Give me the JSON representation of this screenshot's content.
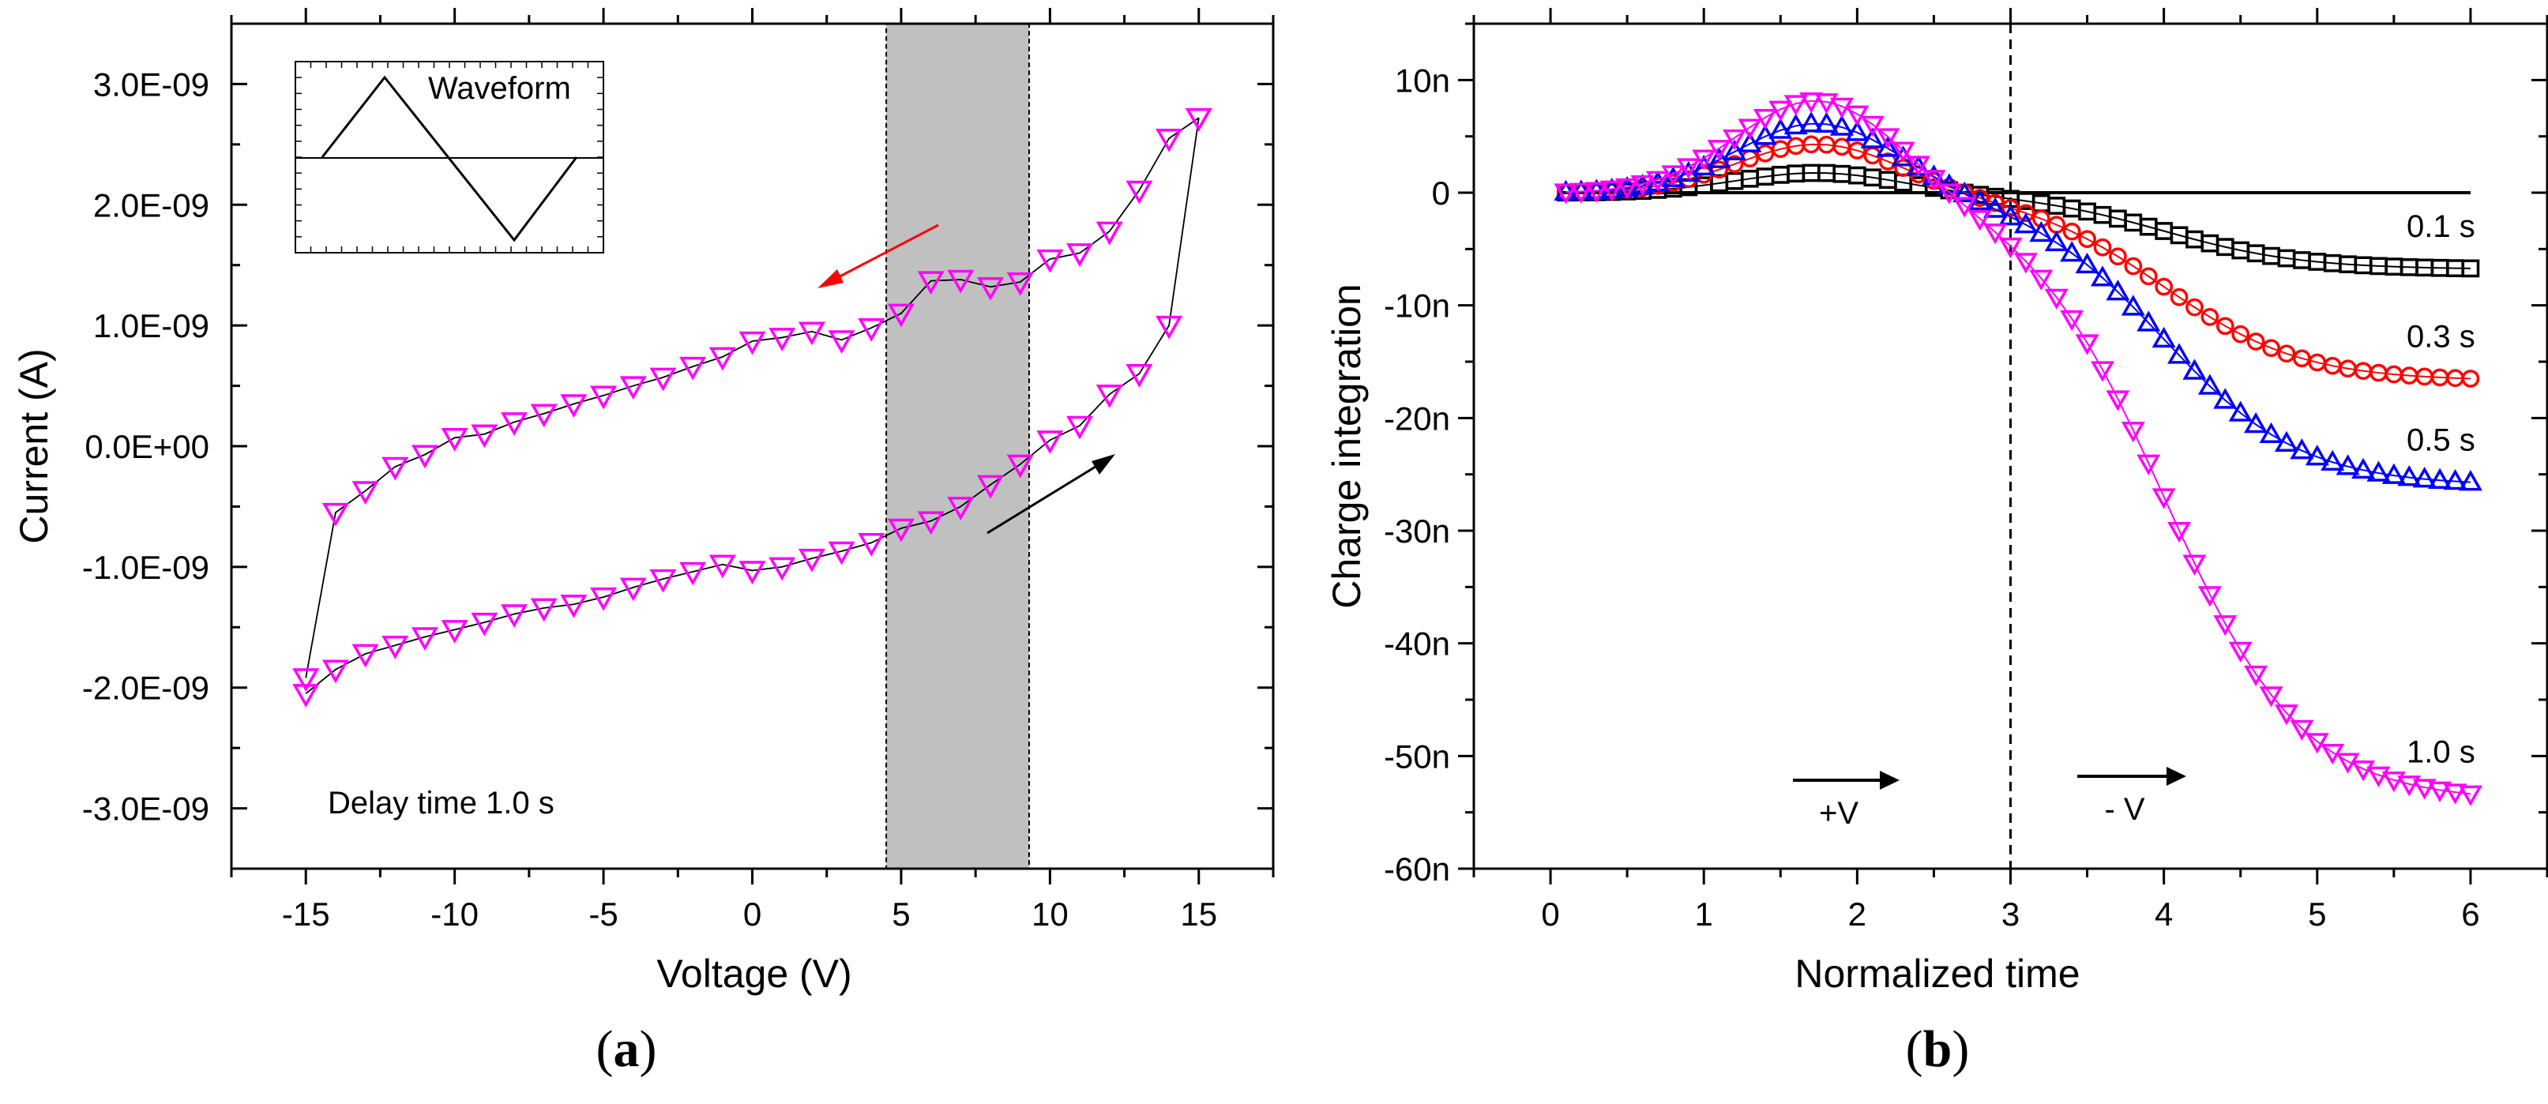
{
  "chart_data": [
    {
      "type": "scatter",
      "panel_label": {
        "open": "(",
        "letter": "a",
        "close": ")"
      },
      "xlabel": "Voltage (V)",
      "ylabel": "Current (A)",
      "xlim": [
        -17.5,
        17.5
      ],
      "ylim": [
        -3.5e-09,
        3.5e-09
      ],
      "x_ticks": [
        -15,
        -10,
        -5,
        0,
        5,
        10,
        15
      ],
      "x_tick_labels": [
        "-15",
        "-10",
        "-5",
        "0",
        "5",
        "10",
        "15"
      ],
      "y_ticks": [
        -3e-09,
        -2e-09,
        -1e-09,
        0,
        1e-09,
        2e-09,
        3e-09
      ],
      "y_tick_labels": [
        "-3.0E-09",
        "-2.0E-09",
        "-1.0E-09",
        "0.0E+00",
        "1.0E-09",
        "2.0E-09",
        "3.0E-09"
      ],
      "marker": "triangle-down-open",
      "color": "#ff00ff",
      "shaded_region_x": [
        4.5,
        9.3
      ],
      "shaded_color": "#c0c0c0",
      "annotation": "Delay time 1.0 s",
      "inset_label": "Waveform",
      "arrow_colors": [
        "#ff0000",
        "#000000"
      ],
      "series": [
        {
          "x": [
            -15,
            -14,
            -13,
            -12,
            -11,
            -10,
            -9,
            -8,
            -7,
            -6,
            -5,
            -4,
            -3,
            -2,
            -1,
            0,
            1,
            2,
            3,
            4,
            5,
            6,
            7,
            8,
            9,
            10,
            11,
            12,
            13,
            14,
            15
          ],
          "y": [
            -2.05e-09,
            -1.85e-09,
            -1.72e-09,
            -1.65e-09,
            -1.58e-09,
            -1.52e-09,
            -1.46e-09,
            -1.39e-09,
            -1.34e-09,
            -1.31e-09,
            -1.25e-09,
            -1.17e-09,
            -1.1e-09,
            -1.04e-09,
            -9.8e-10,
            -1.03e-09,
            -1e-09,
            -9.3e-10,
            -8.7e-10,
            -8e-10,
            -6.8e-10,
            -6.2e-10,
            -5e-10,
            -3.2e-10,
            -1.5e-10,
            5e-11,
            1.7e-10,
            4.3e-10,
            6e-10,
            1e-09,
            2.72e-09
          ]
        },
        {
          "x": [
            15,
            14,
            13,
            12,
            11,
            10,
            9,
            8,
            7,
            6,
            5,
            4,
            3,
            2,
            1,
            0,
            -1,
            -2,
            -3,
            -4,
            -5,
            -6,
            -7,
            -8,
            -9,
            -10,
            -11,
            -12,
            -13,
            -14,
            -15
          ],
          "y": [
            2.72e-09,
            2.55e-09,
            2.12e-09,
            1.78e-09,
            1.6e-09,
            1.55e-09,
            1.36e-09,
            1.32e-09,
            1.38e-09,
            1.37e-09,
            1.1e-09,
            9.8e-10,
            8.8e-10,
            9.5e-10,
            9e-10,
            8.7e-10,
            7.4e-10,
            6.6e-10,
            5.7e-10,
            5e-10,
            4.2e-10,
            3.5e-10,
            2.7e-10,
            2e-10,
            1e-10,
            7e-11,
            -7e-11,
            -1.7e-10,
            -3.7e-10,
            -5.5e-10,
            -1.92e-09
          ]
        }
      ]
    },
    {
      "type": "scatter",
      "panel_label": {
        "open": "(",
        "letter": "b",
        "close": ")"
      },
      "xlabel": "Normalized time",
      "ylabel": "Charge integration",
      "xlim": [
        -0.5,
        6.5
      ],
      "ylim": [
        -60,
        15
      ],
      "x_ticks": [
        0,
        1,
        2,
        3,
        4,
        5,
        6
      ],
      "x_tick_labels": [
        "0",
        "1",
        "2",
        "3",
        "4",
        "5",
        "6"
      ],
      "y_ticks": [
        10,
        0,
        -10,
        -20,
        -30,
        -40,
        -50,
        -60
      ],
      "y_tick_labels": [
        "10n",
        "0",
        "-10n",
        "-20n",
        "-30n",
        "-40n",
        "-50n",
        "-60n"
      ],
      "vline_x": 3,
      "hline_y": 0,
      "annotations": [
        "+V",
        "- V"
      ],
      "series": [
        {
          "name": "0.1 s",
          "color": "#000000",
          "marker": "square-open",
          "peak": 1.8,
          "final": -6.8
        },
        {
          "name": "0.3 s",
          "color": "#ff0000",
          "marker": "circle-open",
          "peak": 4.4,
          "final": -16.7
        },
        {
          "name": "0.5 s",
          "color": "#0000ff",
          "marker": "triangle-up-open",
          "peak": 6.3,
          "final": -26.0
        },
        {
          "name": "1.0 s",
          "color": "#ff00ff",
          "marker": "triangle-down-open",
          "peak": 8.5,
          "final": -54.0
        }
      ]
    }
  ]
}
